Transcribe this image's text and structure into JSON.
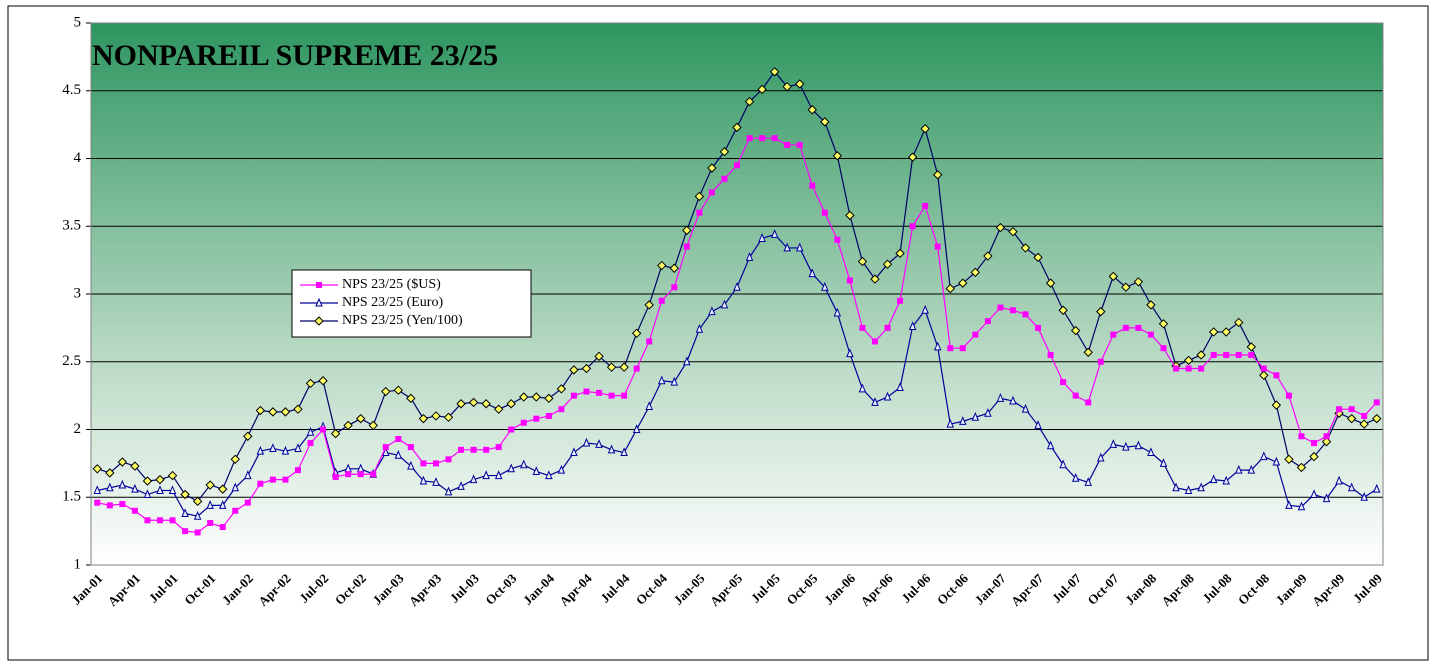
{
  "chart_data": {
    "type": "line",
    "title": "NONPAREIL SUPREME 23/25",
    "categories": [
      "Jan-01",
      null,
      null,
      "Apr-01",
      null,
      null,
      "Jul-01",
      null,
      null,
      "Oct-01",
      null,
      null,
      "Jan-02",
      null,
      null,
      "Apr-02",
      null,
      null,
      "Jul-02",
      null,
      null,
      "Oct-02",
      null,
      null,
      "Jan-03",
      null,
      null,
      "Apr-03",
      null,
      null,
      "Jul-03",
      null,
      null,
      "Oct-03",
      null,
      null,
      "Jan-04",
      null,
      null,
      "Apr-04",
      null,
      null,
      "Jul-04",
      null,
      null,
      "Oct-04",
      null,
      null,
      "Jan-05",
      null,
      null,
      "Apr-05",
      null,
      null,
      "Jul-05",
      null,
      null,
      "Oct-05",
      null,
      null,
      "Jan-06",
      null,
      null,
      "Apr-06",
      null,
      null,
      "Jul-06",
      null,
      null,
      "Oct-06",
      null,
      null,
      "Jan-07",
      null,
      null,
      "Apr-07",
      null,
      null,
      "Jul-07",
      null,
      null,
      "Oct-07",
      null,
      null,
      "Jan-08",
      null,
      null,
      "Apr-08",
      null,
      null,
      "Jul-08",
      null,
      null,
      "Oct-08",
      null,
      null,
      "Jan-09",
      null,
      null,
      "Apr-09",
      null,
      null,
      "Jul-09"
    ],
    "series": [
      {
        "name": "NPS 23/25  ($US)",
        "color": "#ff00ff",
        "marker": "square",
        "values": [
          1.46,
          1.44,
          1.45,
          1.4,
          1.33,
          1.33,
          1.33,
          1.25,
          1.24,
          1.31,
          1.28,
          1.4,
          1.46,
          1.6,
          1.63,
          1.63,
          1.7,
          1.9,
          2.0,
          1.65,
          1.67,
          1.67,
          1.67,
          1.87,
          1.93,
          1.87,
          1.75,
          1.75,
          1.78,
          1.85,
          1.85,
          1.85,
          1.87,
          2.0,
          2.05,
          2.08,
          2.1,
          2.15,
          2.25,
          2.28,
          2.27,
          2.25,
          2.25,
          2.45,
          2.65,
          2.95,
          3.05,
          3.35,
          3.6,
          3.75,
          3.85,
          3.95,
          4.15,
          4.15,
          4.15,
          4.1,
          4.1,
          3.8,
          3.6,
          3.4,
          3.1,
          2.75,
          2.65,
          2.75,
          2.95,
          3.5,
          3.65,
          3.35,
          2.6,
          2.6,
          2.7,
          2.8,
          2.9,
          2.88,
          2.85,
          2.75,
          2.55,
          2.35,
          2.25,
          2.2,
          2.5,
          2.7,
          2.75,
          2.75,
          2.7,
          2.6,
          2.45,
          2.45,
          2.45,
          2.55,
          2.55,
          2.55,
          2.55,
          2.45,
          2.4,
          2.25,
          1.95,
          1.9,
          1.95,
          2.15,
          2.15,
          2.1,
          2.2
        ]
      },
      {
        "name": "NPS 23/25 (Euro)",
        "color": "#000099",
        "marker": "triangle",
        "values": [
          1.55,
          1.57,
          1.59,
          1.56,
          1.52,
          1.55,
          1.55,
          1.38,
          1.36,
          1.44,
          1.44,
          1.57,
          1.66,
          1.84,
          1.86,
          1.84,
          1.86,
          1.98,
          2.02,
          1.68,
          1.71,
          1.71,
          1.67,
          1.83,
          1.81,
          1.73,
          1.62,
          1.61,
          1.54,
          1.58,
          1.63,
          1.66,
          1.66,
          1.71,
          1.74,
          1.69,
          1.66,
          1.7,
          1.83,
          1.9,
          1.89,
          1.85,
          1.83,
          2.0,
          2.17,
          2.36,
          2.35,
          2.5,
          2.74,
          2.87,
          2.92,
          3.05,
          3.27,
          3.41,
          3.44,
          3.34,
          3.34,
          3.15,
          3.05,
          2.86,
          2.56,
          2.3,
          2.2,
          2.24,
          2.31,
          2.76,
          2.88,
          2.61,
          2.04,
          2.06,
          2.09,
          2.12,
          2.23,
          2.21,
          2.15,
          2.03,
          1.88,
          1.74,
          1.64,
          1.61,
          1.79,
          1.89,
          1.87,
          1.88,
          1.83,
          1.75,
          1.57,
          1.55,
          1.57,
          1.63,
          1.62,
          1.7,
          1.7,
          1.8,
          1.76,
          1.44,
          1.43,
          1.52,
          1.49,
          1.62,
          1.57,
          1.5,
          1.56
        ]
      },
      {
        "name": "NPS 23/25 (Yen/100)",
        "color": "#000066",
        "marker": "diamond",
        "marker_color": "#ffff66",
        "values": [
          1.71,
          1.68,
          1.76,
          1.73,
          1.62,
          1.63,
          1.66,
          1.52,
          1.47,
          1.59,
          1.56,
          1.78,
          1.95,
          2.14,
          2.13,
          2.13,
          2.15,
          2.34,
          2.36,
          1.97,
          2.03,
          2.08,
          2.03,
          2.28,
          2.29,
          2.23,
          2.08,
          2.1,
          2.09,
          2.19,
          2.2,
          2.19,
          2.15,
          2.19,
          2.24,
          2.24,
          2.23,
          2.3,
          2.44,
          2.45,
          2.54,
          2.46,
          2.46,
          2.71,
          2.92,
          3.21,
          3.19,
          3.47,
          3.72,
          3.93,
          4.05,
          4.23,
          4.42,
          4.51,
          4.64,
          4.53,
          4.55,
          4.36,
          4.27,
          4.02,
          3.58,
          3.24,
          3.11,
          3.22,
          3.3,
          4.01,
          4.22,
          3.88,
          3.04,
          3.08,
          3.16,
          3.28,
          3.49,
          3.46,
          3.34,
          3.27,
          3.08,
          2.88,
          2.73,
          2.57,
          2.87,
          3.13,
          3.05,
          3.09,
          2.92,
          2.78,
          2.47,
          2.51,
          2.55,
          2.72,
          2.72,
          2.79,
          2.61,
          2.4,
          2.18,
          1.78,
          1.72,
          1.8,
          1.91,
          2.12,
          2.08,
          2.04,
          2.08
        ]
      }
    ],
    "ylim": [
      1,
      5
    ],
    "yticks": [
      1,
      1.5,
      2,
      2.5,
      3,
      3.5,
      4,
      4.5,
      5
    ],
    "grid": true
  }
}
